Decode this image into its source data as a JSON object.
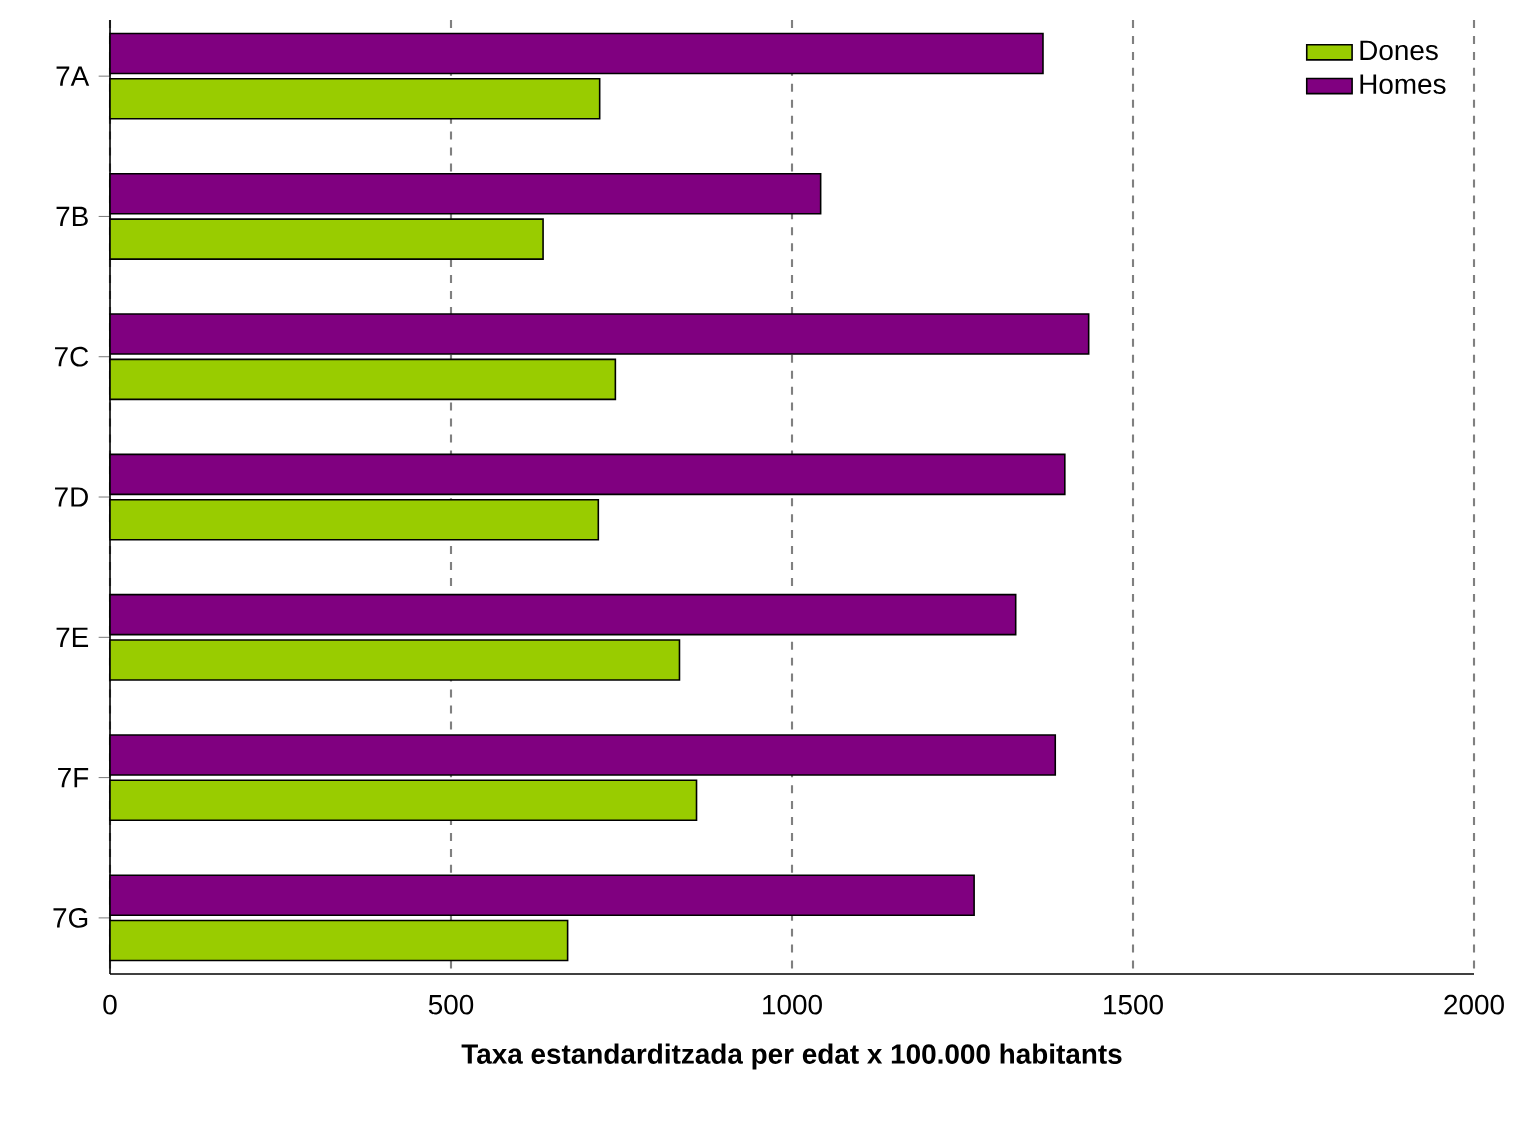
{
  "chart_data": {
    "type": "bar",
    "orientation": "horizontal",
    "xlabel": "Taxa estandarditzada per edat x 100.000 habitants",
    "categories": [
      "7A",
      "7B",
      "7C",
      "7D",
      "7E",
      "7F",
      "7G"
    ],
    "series": [
      {
        "name": "Dones",
        "color": "#99cc00",
        "values": [
          718,
          635,
          741,
          716,
          835,
          860,
          671
        ]
      },
      {
        "name": "Homes",
        "color": "#800080",
        "values": [
          1368,
          1042,
          1435,
          1400,
          1328,
          1386,
          1267
        ]
      }
    ],
    "xlim": [
      0,
      2000
    ],
    "xticks": [
      0,
      500,
      1000,
      1500,
      2000
    ],
    "grid": "x",
    "legend": "top right"
  }
}
